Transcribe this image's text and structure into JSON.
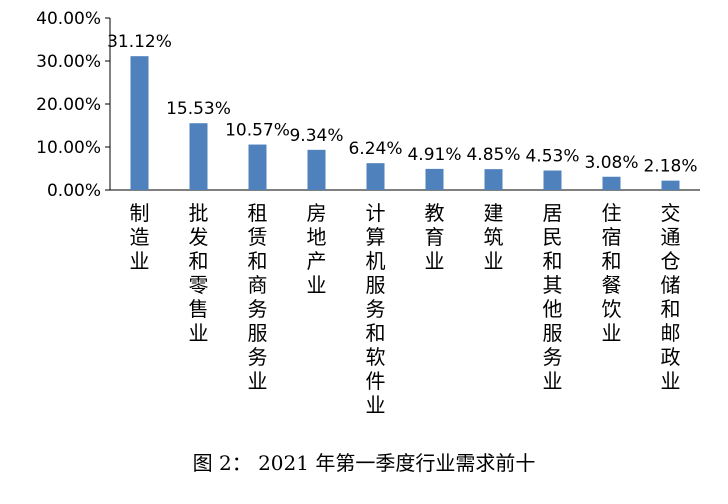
{
  "caption": "图 2：   2021 年第一季度行业需求前十",
  "chart_data": {
    "type": "bar",
    "categories": [
      "制造业",
      "批发和零售业",
      "租赁和商务服务业",
      "房地产业",
      "计算机服务和软件业",
      "教育业",
      "建筑业",
      "居民和其他服务业",
      "住宿和餐饮业",
      "交通仓储和邮政业"
    ],
    "values": [
      31.12,
      15.53,
      10.57,
      9.34,
      6.24,
      4.91,
      4.85,
      4.53,
      3.08,
      2.18
    ],
    "data_labels": [
      "31.12%",
      "15.53%",
      "10.57%",
      "9.34%",
      "6.24%",
      "4.91%",
      "4.85%",
      "4.53%",
      "3.08%",
      "2.18%"
    ],
    "ylim": [
      0,
      40
    ],
    "yticks": [
      0,
      10,
      20,
      30,
      40
    ],
    "ytick_labels": [
      "0.00%",
      "10.00%",
      "20.00%",
      "30.00%",
      "40.00%"
    ],
    "grid": false,
    "bar_color": "#4f81bd"
  }
}
